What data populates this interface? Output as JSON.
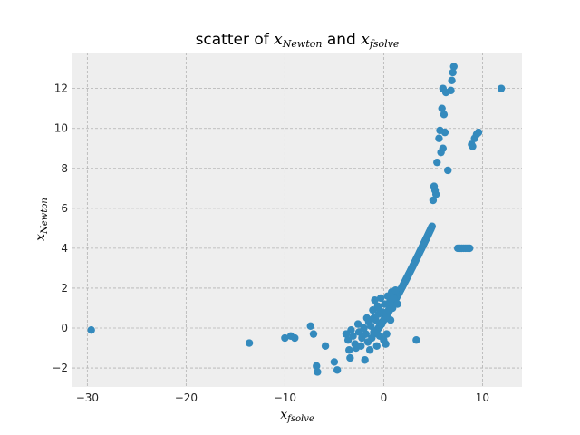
{
  "chart_data": {
    "type": "scatter",
    "title": {
      "prefix": "scatter of",
      "var1": "x",
      "var1_sub": "Newton",
      "joiner": "and",
      "var2": "x",
      "var2_sub": "fsolve"
    },
    "xlabel": {
      "base": "x",
      "sub": "fsolve"
    },
    "ylabel": {
      "base": "x",
      "sub": "Newton"
    },
    "xlim": [
      -31.5,
      14
    ],
    "ylim": [
      -2.95,
      13.8
    ],
    "x_ticks": [
      -30,
      -20,
      -10,
      0,
      10
    ],
    "x_tick_labels": [
      "−30",
      "−20",
      "−10",
      "0",
      "10"
    ],
    "y_ticks": [
      -2,
      0,
      2,
      4,
      6,
      8,
      10,
      12
    ],
    "y_tick_labels": [
      "−2",
      "0",
      "2",
      "4",
      "6",
      "8",
      "10",
      "12"
    ],
    "grid": true,
    "marker_color": "#348ABD",
    "background_color": "#EEEEEE",
    "grid_color": "#B2B2B2",
    "dense_band": {
      "x_start": -1,
      "x_end": 4.9,
      "y_start": -0.3,
      "y_end": 5.1,
      "count": 140
    },
    "points": [
      [
        -29.6,
        -0.1
      ],
      [
        -13.6,
        -0.75
      ],
      [
        -10.0,
        -0.5
      ],
      [
        -9.4,
        -0.4
      ],
      [
        -9.0,
        -0.5
      ],
      [
        -7.4,
        0.1
      ],
      [
        -7.1,
        -0.3
      ],
      [
        -6.8,
        -1.9
      ],
      [
        -6.7,
        -2.2
      ],
      [
        -5.9,
        -0.9
      ],
      [
        -5.0,
        -1.7
      ],
      [
        -4.7,
        -2.1
      ],
      [
        -3.8,
        -0.3
      ],
      [
        -3.6,
        -0.6
      ],
      [
        -3.5,
        -1.1
      ],
      [
        -3.4,
        -1.5
      ],
      [
        -3.3,
        -0.1
      ],
      [
        -3.1,
        -0.4
      ],
      [
        -2.9,
        -0.8
      ],
      [
        -2.8,
        -1.0
      ],
      [
        -2.6,
        0.2
      ],
      [
        -2.5,
        -0.2
      ],
      [
        -2.3,
        -0.9
      ],
      [
        -2.2,
        -0.5
      ],
      [
        -2.0,
        0.0
      ],
      [
        -1.9,
        -1.6
      ],
      [
        -1.8,
        -0.3
      ],
      [
        -1.7,
        0.5
      ],
      [
        -1.6,
        -0.7
      ],
      [
        -1.5,
        0.3
      ],
      [
        -1.4,
        -1.1
      ],
      [
        -1.3,
        0.1
      ],
      [
        -1.2,
        -0.5
      ],
      [
        -1.1,
        0.9
      ],
      [
        -1.0,
        -0.2
      ],
      [
        -0.9,
        1.4
      ],
      [
        -0.8,
        0.4
      ],
      [
        -0.7,
        -0.9
      ],
      [
        -0.6,
        1.1
      ],
      [
        -0.5,
        0.7
      ],
      [
        -0.4,
        -0.4
      ],
      [
        -0.3,
        1.5
      ],
      [
        -0.2,
        0.2
      ],
      [
        -0.1,
        0.8
      ],
      [
        0.0,
        -0.6
      ],
      [
        0.1,
        1.2
      ],
      [
        0.2,
        0.5
      ],
      [
        0.3,
        -0.3
      ],
      [
        0.4,
        1.6
      ],
      [
        0.5,
        0.9
      ],
      [
        0.6,
        1.3
      ],
      [
        0.7,
        0.4
      ],
      [
        0.8,
        1.8
      ],
      [
        0.9,
        1.0
      ],
      [
        1.0,
        1.5
      ],
      [
        1.2,
        1.9
      ],
      [
        1.4,
        1.2
      ],
      [
        -0.5,
        1.0
      ],
      [
        -1.0,
        0.5
      ],
      [
        0.2,
        -0.8
      ],
      [
        3.3,
        -0.6
      ],
      [
        5.0,
        6.4
      ],
      [
        5.1,
        7.1
      ],
      [
        5.2,
        6.9
      ],
      [
        5.3,
        6.7
      ],
      [
        5.4,
        8.3
      ],
      [
        5.6,
        9.5
      ],
      [
        5.7,
        9.9
      ],
      [
        5.8,
        8.8
      ],
      [
        5.9,
        11.0
      ],
      [
        6.0,
        9.0
      ],
      [
        6.0,
        12.0
      ],
      [
        6.1,
        10.7
      ],
      [
        6.2,
        9.8
      ],
      [
        6.3,
        11.8
      ],
      [
        6.5,
        7.9
      ],
      [
        6.8,
        11.9
      ],
      [
        6.9,
        12.4
      ],
      [
        7.0,
        12.8
      ],
      [
        7.1,
        13.1
      ],
      [
        7.5,
        4.0
      ],
      [
        7.7,
        4.0
      ],
      [
        7.9,
        4.0
      ],
      [
        8.1,
        4.0
      ],
      [
        8.3,
        4.0
      ],
      [
        8.5,
        4.0
      ],
      [
        8.7,
        4.0
      ],
      [
        8.9,
        9.2
      ],
      [
        9.0,
        9.1
      ],
      [
        9.2,
        9.5
      ],
      [
        9.4,
        9.7
      ],
      [
        9.6,
        9.8
      ],
      [
        11.9,
        12.0
      ]
    ]
  }
}
